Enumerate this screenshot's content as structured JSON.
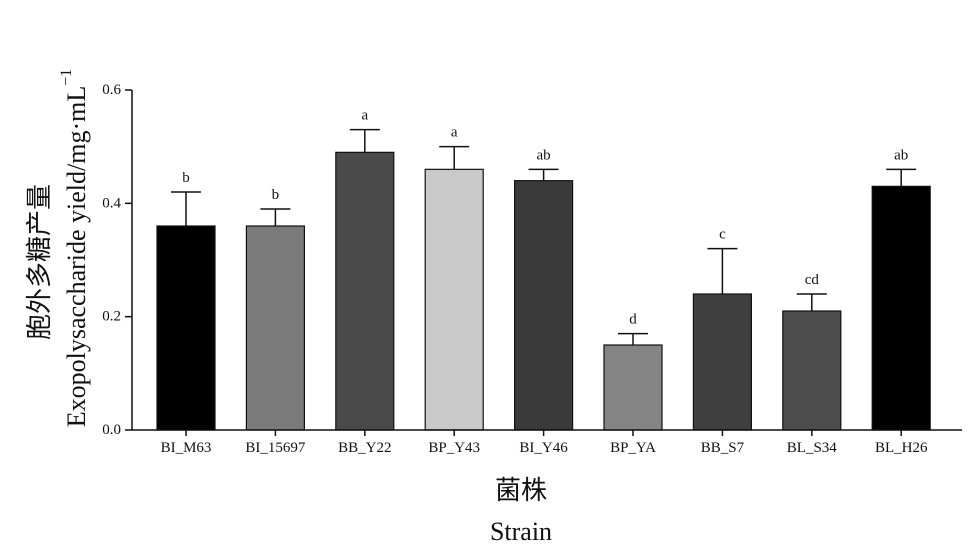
{
  "chart_data": {
    "type": "bar",
    "categories": [
      "BI_M63",
      "BI_15697",
      "BB_Y22",
      "BP_Y43",
      "BI_Y46",
      "BP_YA",
      "BB_S7",
      "BL_S34",
      "BL_H26"
    ],
    "values": [
      0.36,
      0.36,
      0.49,
      0.46,
      0.44,
      0.15,
      0.24,
      0.21,
      0.43
    ],
    "errors": [
      0.06,
      0.03,
      0.04,
      0.04,
      0.02,
      0.02,
      0.08,
      0.03,
      0.03
    ],
    "significance": [
      "b",
      "b",
      "a",
      "a",
      "ab",
      "d",
      "c",
      "cd",
      "ab"
    ],
    "bar_colors": [
      "#000000",
      "#7a7a7a",
      "#4a4a4a",
      "#c9c9c9",
      "#3a3a3a",
      "#858585",
      "#3f3f3f",
      "#4d4d4d",
      "#000000"
    ],
    "ylim": [
      0,
      0.6
    ],
    "yticks": [
      "0.0",
      "0.2",
      "0.4",
      "0.6"
    ],
    "ylabel_cn": "胞外多糖产量",
    "ylabel_en": "Exopolysaccharide yield/mg·mL",
    "ylabel_en_sup": "−1",
    "xlabel_cn": "菌株",
    "xlabel_en": "Strain",
    "grid": false,
    "legend": "none"
  }
}
